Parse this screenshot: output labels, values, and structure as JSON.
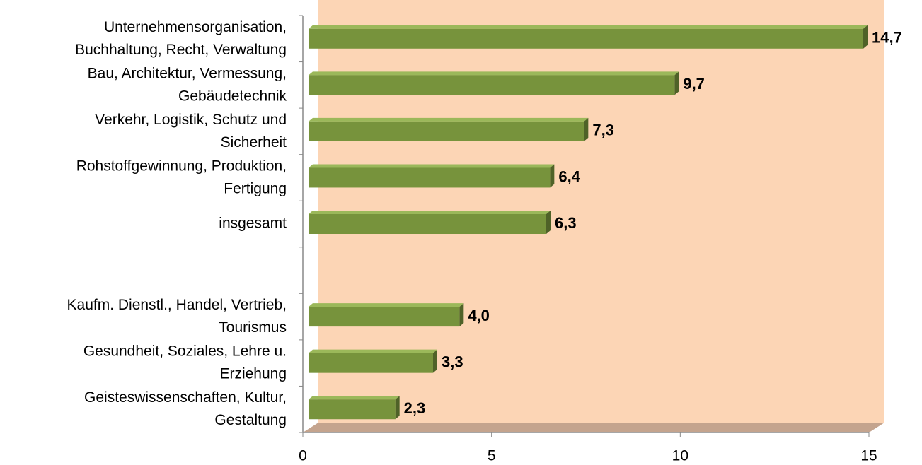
{
  "chart_data": {
    "type": "bar",
    "orientation": "horizontal",
    "categories": [
      "Unternehmensorganisation,\nBuchhaltung, Recht, Verwaltung",
      "Bau, Architektur, Vermessung,\nGebäudetechnik",
      "Verkehr, Logistik, Schutz und\nSicherheit",
      "Rohstoffgewinnung, Produktion,\nFertigung",
      "insgesamt",
      null,
      "Kaufm. Dienstl., Handel, Vertrieb,\nTourismus",
      "Gesundheit, Soziales, Lehre u.\nErziehung",
      "Geisteswissenschaften, Kultur,\nGestaltung"
    ],
    "values": [
      14.7,
      9.7,
      7.3,
      6.4,
      6.3,
      null,
      4.0,
      3.3,
      2.3
    ],
    "value_labels": [
      "14,7",
      "9,7",
      "7,3",
      "6,4",
      "6,3",
      null,
      "4,0",
      "3,3",
      "2,3"
    ],
    "color": "#77933c",
    "xlim": [
      0,
      15
    ],
    "xticks": [
      0,
      5,
      10,
      15
    ]
  }
}
